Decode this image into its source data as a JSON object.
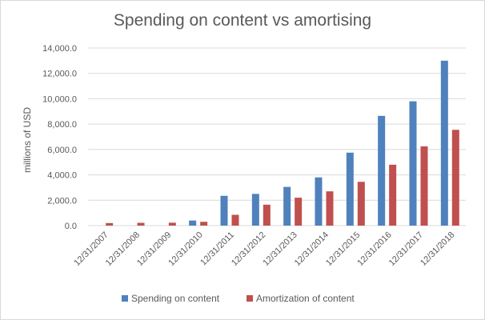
{
  "chart_data": {
    "type": "bar",
    "title": "Spending on content vs amortising",
    "xlabel": "",
    "ylabel": "millions of USD",
    "ylim": [
      0,
      14000
    ],
    "yticks": [
      "0.0",
      "2,000.0",
      "4,000.0",
      "6,000.0",
      "8,000.0",
      "10,000.0",
      "12,000.0",
      "14,000.0"
    ],
    "yticks_values": [
      0,
      2000,
      4000,
      6000,
      8000,
      10000,
      12000,
      14000
    ],
    "grid": true,
    "legend_position": "bottom",
    "categories": [
      "12/31/2007",
      "12/31/2008",
      "12/31/2009",
      "12/31/2010",
      "12/31/2011",
      "12/31/2012",
      "12/31/2013",
      "12/31/2014",
      "12/31/2015",
      "12/31/2016",
      "12/31/2017",
      "12/31/2018"
    ],
    "series": [
      {
        "name": "Spending on content",
        "color": "#4f81bd",
        "values": [
          0,
          0,
          0,
          400,
          2350,
          2500,
          3050,
          3800,
          5750,
          8650,
          9800,
          13000
        ]
      },
      {
        "name": "Amortization of content",
        "color": "#c0504d",
        "values": [
          200,
          220,
          230,
          300,
          850,
          1650,
          2200,
          2700,
          3450,
          4800,
          6250,
          7550
        ]
      }
    ]
  }
}
